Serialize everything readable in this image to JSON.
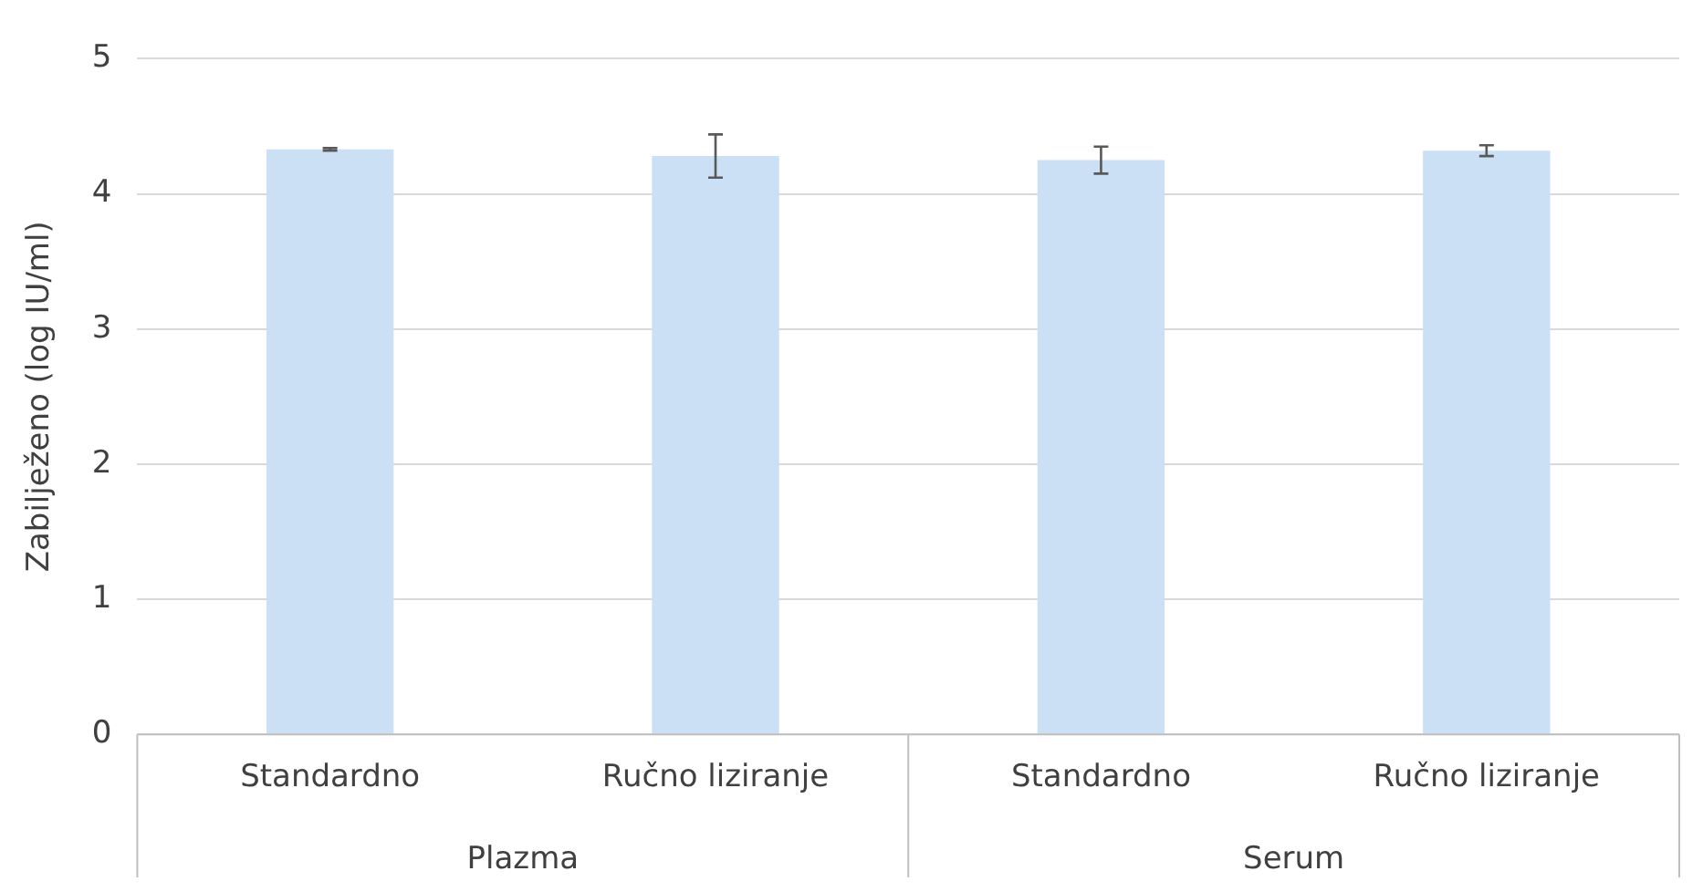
{
  "chart_data": {
    "type": "bar",
    "ylabel": "Zabilježeno (log IU/ml)",
    "categories": [
      "Standardno",
      "Ručno liziranje",
      "Standardno",
      "Ručno liziranje"
    ],
    "values": [
      4.33,
      4.28,
      4.25,
      4.32
    ],
    "errors": [
      0.01,
      0.16,
      0.1,
      0.04
    ],
    "color": "#cce0f5",
    "ylim": [
      0,
      5
    ],
    "yticks": [
      0,
      1,
      2,
      3,
      4,
      5
    ],
    "grid": "y",
    "legend": false,
    "annotations": [
      "Plazma",
      "Serum"
    ]
  }
}
